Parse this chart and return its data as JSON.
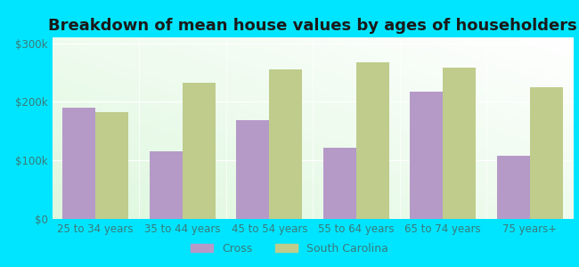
{
  "title": "Breakdown of mean house values by ages of householders",
  "categories": [
    "25 to 34 years",
    "35 to 44 years",
    "45 to 54 years",
    "55 to 64 years",
    "65 to 74 years",
    "75 years+"
  ],
  "cross_values": [
    190000,
    115000,
    168000,
    122000,
    218000,
    108000
  ],
  "sc_values": [
    182000,
    232000,
    255000,
    268000,
    258000,
    225000
  ],
  "cross_color": "#b59ac8",
  "sc_color": "#bfcc8c",
  "background_outer": "#00e5ff",
  "ylim": [
    0,
    310000
  ],
  "yticks": [
    0,
    100000,
    200000,
    300000
  ],
  "ytick_labels": [
    "$0",
    "$100k",
    "$200k",
    "$300k"
  ],
  "legend_labels": [
    "Cross",
    "South Carolina"
  ],
  "title_fontsize": 13,
  "tick_fontsize": 8.5,
  "legend_fontsize": 9,
  "bar_width": 0.38
}
